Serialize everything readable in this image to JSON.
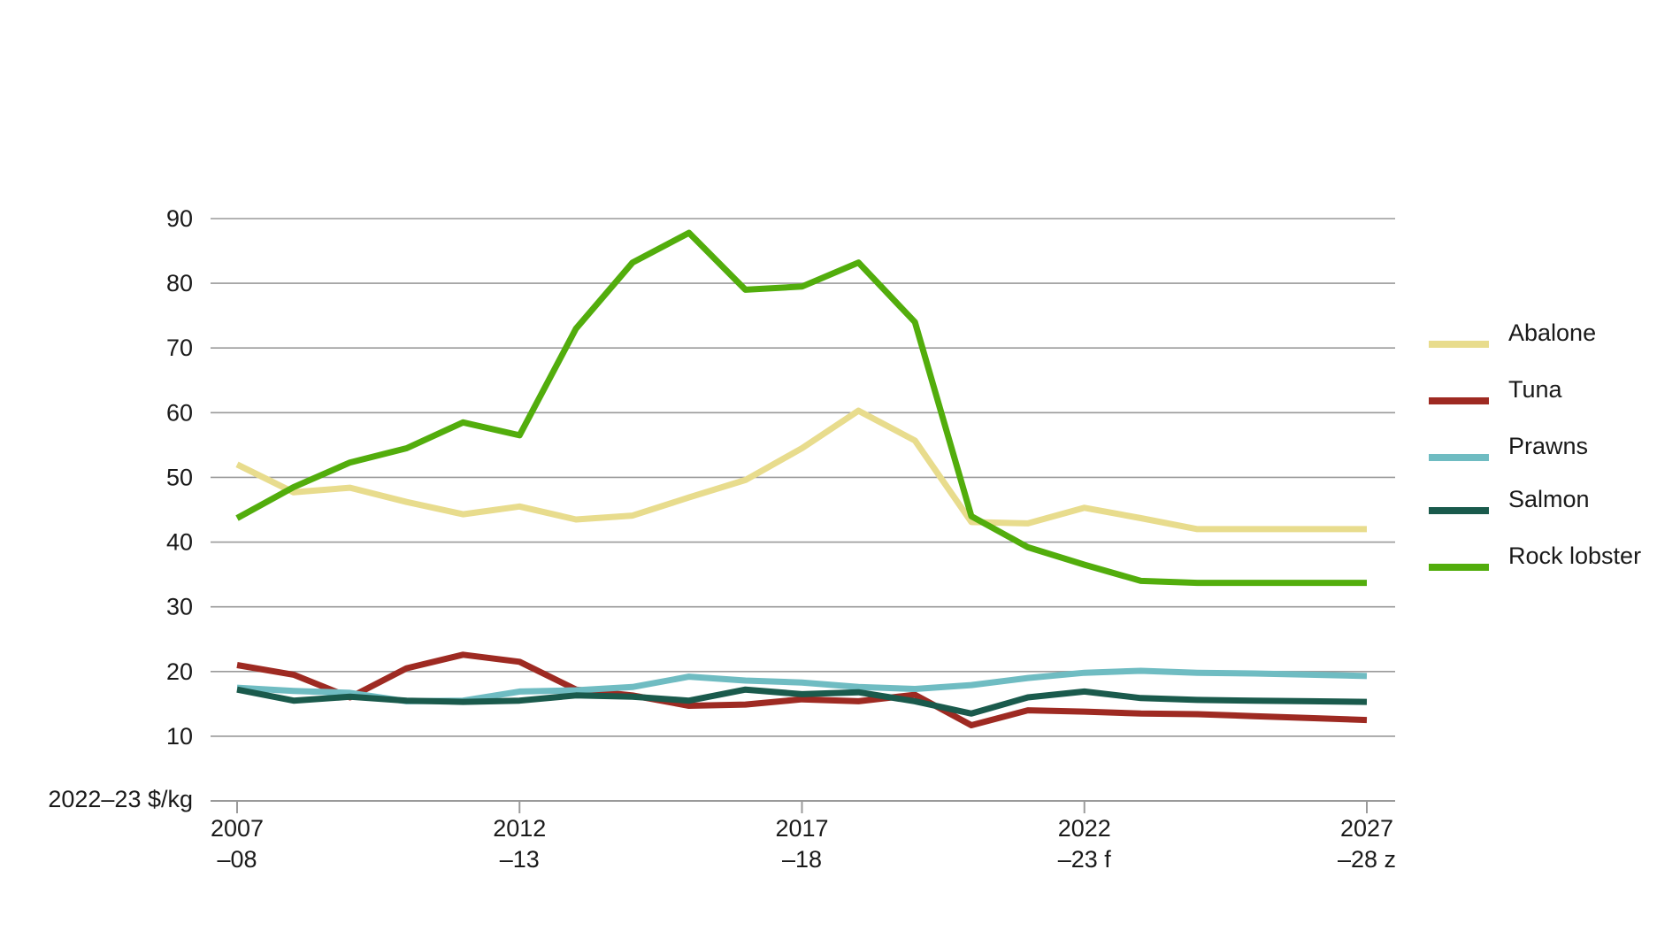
{
  "chart_data": {
    "type": "line",
    "ylabel": "2022–23 $/kg",
    "ylim": [
      0,
      90
    ],
    "yticks": [
      10,
      20,
      30,
      40,
      50,
      60,
      70,
      80,
      90
    ],
    "ytick_labels": [
      "10",
      "20",
      "30",
      "40",
      "50",
      "60",
      "70",
      "80",
      "90"
    ],
    "x": [
      "2007–08",
      "2008–09",
      "2009–10",
      "2010–11",
      "2011–12",
      "2012–13",
      "2013–14",
      "2014–15",
      "2015–16",
      "2016–17",
      "2017–18",
      "2018–19",
      "2019–20",
      "2020–21",
      "2021–22",
      "2022–23 f",
      "2023–24 z",
      "2024–25 z",
      "2025–26 z",
      "2026–27 z",
      "2027–28 z"
    ],
    "xticks": [
      {
        "index": 0,
        "line1": "2007",
        "line2": "–08"
      },
      {
        "index": 5,
        "line1": "2012",
        "line2": "–13"
      },
      {
        "index": 10,
        "line1": "2017",
        "line2": "–18"
      },
      {
        "index": 15,
        "line1": "2022",
        "line2": "–23 f"
      },
      {
        "index": 20,
        "line1": "2027",
        "line2": "–28 z"
      }
    ],
    "grid": true,
    "legend_position": "right",
    "series": [
      {
        "name": "Abalone",
        "color": "#e8dc8d",
        "values": [
          52.0,
          47.7,
          48.4,
          46.2,
          44.3,
          45.5,
          43.5,
          44.1,
          46.9,
          49.6,
          54.5,
          60.3,
          55.7,
          43.1,
          42.9,
          45.3,
          43.7,
          42.0,
          42.0,
          42.0,
          42.0
        ]
      },
      {
        "name": "Tuna",
        "color": "#9e2a22",
        "values": [
          21.0,
          19.5,
          16.0,
          20.5,
          22.6,
          21.5,
          17.2,
          16.3,
          14.7,
          14.9,
          15.7,
          15.4,
          16.4,
          11.7,
          14.0,
          13.8,
          13.5,
          13.4,
          13.1,
          12.8,
          12.5
        ]
      },
      {
        "name": "Prawns",
        "color": "#6fbcc2",
        "values": [
          17.5,
          17.0,
          16.7,
          15.4,
          15.5,
          16.9,
          17.1,
          17.6,
          19.2,
          18.6,
          18.3,
          17.6,
          17.3,
          17.9,
          19.0,
          19.8,
          20.1,
          19.8,
          19.7,
          19.5,
          19.3
        ]
      },
      {
        "name": "Salmon",
        "color": "#1a5a4c",
        "values": [
          17.2,
          15.5,
          16.1,
          15.5,
          15.3,
          15.5,
          16.3,
          16.1,
          15.5,
          17.2,
          16.5,
          16.8,
          15.4,
          13.5,
          16.0,
          16.9,
          15.9,
          15.6,
          15.5,
          15.4,
          15.3
        ]
      },
      {
        "name": "Rock lobster",
        "color": "#52ad0c",
        "values": [
          43.7,
          48.5,
          52.3,
          54.5,
          58.5,
          56.5,
          73.0,
          83.2,
          87.8,
          79.0,
          79.5,
          83.2,
          74.0,
          44.0,
          39.2,
          36.5,
          34.0,
          33.7,
          33.7,
          33.7,
          33.7
        ]
      }
    ]
  }
}
